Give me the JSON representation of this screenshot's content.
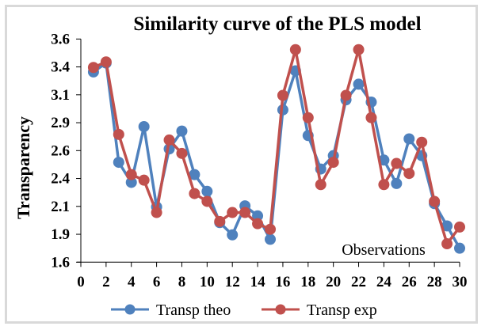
{
  "chart_data": {
    "type": "line",
    "title": "Similarity curve of the PLS model",
    "xlabel": "Observations",
    "ylabel": "Transparency",
    "xlim": [
      0,
      30
    ],
    "ylim": [
      1.625,
      3.625
    ],
    "x_ticks": [
      0,
      2,
      4,
      6,
      8,
      10,
      12,
      14,
      16,
      18,
      20,
      22,
      24,
      26,
      28,
      30
    ],
    "x_tick_labels": [
      "0",
      "2",
      "4",
      "6",
      "8",
      "10",
      "12",
      "14",
      "16",
      "18",
      "20",
      "22",
      "24",
      "26",
      "28",
      "30"
    ],
    "y_ticks": [
      1.625,
      1.875,
      2.125,
      2.375,
      2.625,
      2.875,
      3.125,
      3.375,
      3.625
    ],
    "y_tick_labels": [
      "1.6",
      "1.9",
      "2.1",
      "2.4",
      "2.6",
      "2.9",
      "3.1",
      "3.4",
      "3.6"
    ],
    "grid": false,
    "legend_position": "bottom",
    "x": [
      1,
      2,
      3,
      4,
      5,
      6,
      7,
      8,
      9,
      10,
      11,
      12,
      13,
      14,
      15,
      16,
      17,
      18,
      19,
      20,
      21,
      22,
      23,
      24,
      25,
      26,
      27,
      28,
      29,
      30
    ],
    "series": [
      {
        "name": "Transp theo",
        "color": "#4f81bd",
        "values": [
          3.33,
          3.41,
          2.52,
          2.34,
          2.84,
          2.12,
          2.64,
          2.8,
          2.41,
          2.26,
          1.98,
          1.87,
          2.13,
          2.04,
          1.83,
          2.99,
          3.34,
          2.76,
          2.46,
          2.58,
          3.08,
          3.22,
          3.06,
          2.54,
          2.33,
          2.73,
          2.58,
          2.15,
          1.95,
          1.75
        ]
      },
      {
        "name": "Transp exp",
        "color": "#c0504d",
        "values": [
          3.37,
          3.42,
          2.77,
          2.41,
          2.36,
          2.07,
          2.72,
          2.6,
          2.24,
          2.17,
          1.99,
          2.07,
          2.07,
          1.97,
          1.92,
          3.12,
          3.53,
          2.92,
          2.32,
          2.52,
          3.12,
          3.53,
          2.92,
          2.32,
          2.51,
          2.42,
          2.7,
          2.17,
          1.79,
          1.94
        ]
      }
    ]
  }
}
